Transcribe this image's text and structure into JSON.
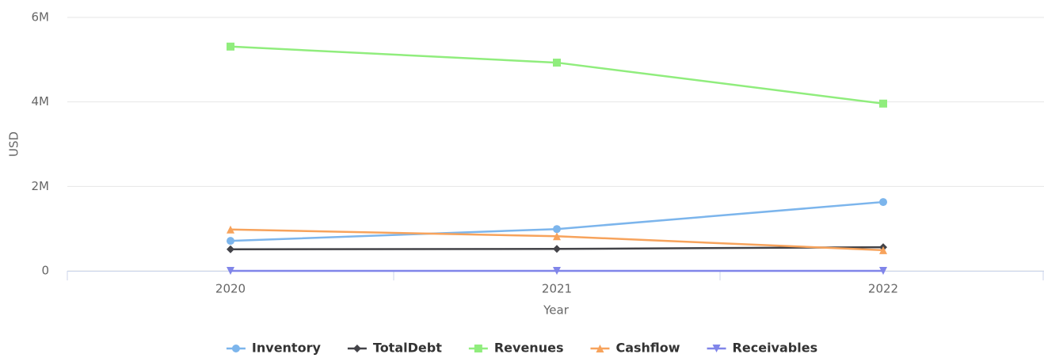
{
  "chart_data": {
    "type": "line",
    "categories": [
      "2020",
      "2021",
      "2022"
    ],
    "x_label": "Year",
    "y_label": "USD",
    "ylim": [
      0,
      6000000
    ],
    "yticks": [
      {
        "value": 0,
        "label": "0"
      },
      {
        "value": 2000000,
        "label": "2M"
      },
      {
        "value": 4000000,
        "label": "4M"
      },
      {
        "value": 6000000,
        "label": "6M"
      }
    ],
    "grid": true,
    "legend": "bottom",
    "series": [
      {
        "name": "Inventory",
        "color": "#7cb5ec",
        "marker": "circle",
        "values": [
          710000,
          990000,
          1630000
        ]
      },
      {
        "name": "TotalDebt",
        "color": "#434348",
        "marker": "diamond",
        "values": [
          510000,
          520000,
          560000
        ]
      },
      {
        "name": "Revenues",
        "color": "#90ed7d",
        "marker": "square",
        "values": [
          5310000,
          4930000,
          3960000
        ]
      },
      {
        "name": "Cashflow",
        "color": "#f7a35c",
        "marker": "triangle",
        "values": [
          980000,
          820000,
          490000
        ]
      },
      {
        "name": "Receivables",
        "color": "#8085e9",
        "marker": "triangle-down",
        "values": [
          0,
          0,
          0
        ]
      }
    ]
  }
}
